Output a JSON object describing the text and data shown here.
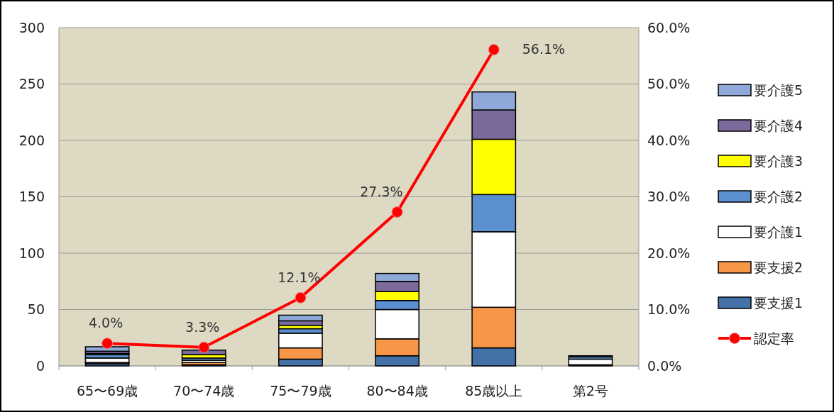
{
  "chart_data": {
    "type": "bar",
    "stacked": true,
    "categories": [
      "65〜69歳",
      "70〜74歳",
      "75〜79歳",
      "80〜84歳",
      "85歳以上",
      "第2号"
    ],
    "series": [
      {
        "name": "要支援1",
        "color": "#4472a8",
        "values": [
          2,
          1,
          6,
          9,
          16,
          1
        ]
      },
      {
        "name": "要支援2",
        "color": "#f79646",
        "values": [
          1,
          2,
          10,
          15,
          36,
          0
        ]
      },
      {
        "name": "要介護1",
        "color": "#ffffff",
        "values": [
          4,
          2,
          13,
          26,
          67,
          5
        ]
      },
      {
        "name": "要介護2",
        "color": "#5b8fd0",
        "values": [
          3,
          2,
          4,
          8,
          33,
          2
        ]
      },
      {
        "name": "要介護3",
        "color": "#ffff00",
        "values": [
          1,
          3,
          3,
          8,
          49,
          0
        ]
      },
      {
        "name": "要介護4",
        "color": "#7b6a9c",
        "values": [
          2,
          4,
          4,
          9,
          26,
          0
        ]
      },
      {
        "name": "要介護5",
        "color": "#8ea9d8",
        "values": [
          4,
          0,
          5,
          7,
          16,
          1
        ]
      },
      {
        "name": "認定率",
        "type": "line",
        "axis": "y2",
        "color": "#ff0000",
        "marker": "circle",
        "values": [
          4.0,
          3.3,
          12.1,
          27.3,
          56.1,
          null
        ],
        "value_labels": [
          "4.0%",
          "3.3%",
          "12.1%",
          "27.3%",
          "56.1%",
          null
        ]
      }
    ],
    "ylim": [
      0,
      300
    ],
    "yticks": [
      0,
      50,
      100,
      150,
      200,
      250,
      300
    ],
    "y2lim": [
      0,
      60
    ],
    "y2ticks": [
      {
        "value": 0,
        "label": "0.0%"
      },
      {
        "value": 10,
        "label": "10.0%"
      },
      {
        "value": 20,
        "label": "20.0%"
      },
      {
        "value": 30,
        "label": "30.0%"
      },
      {
        "value": 40,
        "label": "40.0%"
      },
      {
        "value": 50,
        "label": "50.0%"
      },
      {
        "value": 60,
        "label": "60.0%"
      }
    ],
    "grid": "y",
    "legend": "right"
  }
}
